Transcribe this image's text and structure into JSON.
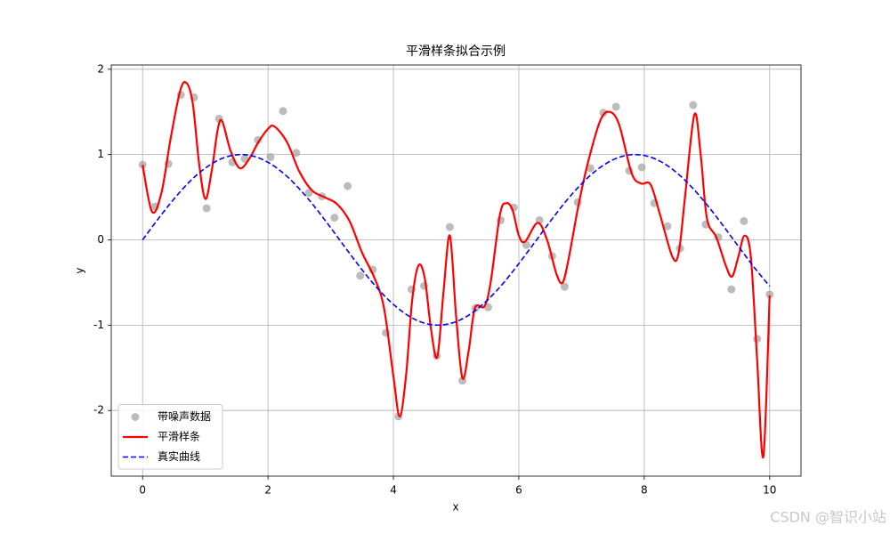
{
  "chart_data": {
    "type": "scatter",
    "title": "平滑样条拟合示例",
    "x_label": "x",
    "y_label": "y",
    "xlim": [
      -0.5,
      10.5
    ],
    "ylim": [
      -2.77,
      2.05
    ],
    "xticks": [
      0,
      2,
      4,
      6,
      8,
      10
    ],
    "yticks": [
      -2,
      -1,
      0,
      1,
      2
    ],
    "grid": true,
    "legend": "lower left",
    "watermark": "CSDN @智识小站",
    "series": [
      {
        "name": "带噪声数据",
        "kind": "points",
        "color": "#a0a0a0",
        "x": [
          0,
          0.2,
          0.41,
          0.61,
          0.82,
          1.02,
          1.22,
          1.43,
          1.63,
          1.84,
          2.04,
          2.24,
          2.45,
          2.65,
          2.86,
          3.06,
          3.27,
          3.47,
          3.67,
          3.88,
          4.08,
          4.29,
          4.49,
          4.69,
          4.9,
          5.1,
          5.31,
          5.51,
          5.71,
          5.92,
          6.12,
          6.33,
          6.53,
          6.73,
          6.94,
          7.14,
          7.35,
          7.55,
          7.76,
          7.96,
          8.16,
          8.37,
          8.57,
          8.78,
          8.98,
          9.18,
          9.39,
          9.59,
          9.8,
          10
        ],
        "values": [
          0.88,
          0.39,
          0.89,
          1.7,
          1.67,
          0.37,
          1.42,
          0.91,
          0.95,
          1.17,
          0.97,
          1.51,
          1.02,
          0.55,
          0.51,
          0.26,
          0.63,
          -0.42,
          -0.35,
          -1.09,
          -2.07,
          -0.58,
          -0.54,
          -1.36,
          0.15,
          -1.65,
          -0.8,
          -0.79,
          0.23,
          0.38,
          -0.06,
          0.23,
          -0.19,
          -0.55,
          0.44,
          0.84,
          1.49,
          1.56,
          0.81,
          0.85,
          0.43,
          0.16,
          -0.1,
          1.58,
          0.18,
          0.03,
          -0.58,
          0.22,
          -1.16,
          -0.64
        ]
      },
      {
        "name": "平滑样条",
        "kind": "smooth",
        "color": "#ff0000",
        "x": [
          0,
          0.15,
          0.3,
          0.45,
          0.6,
          0.7,
          0.8,
          0.9,
          1.0,
          1.1,
          1.2,
          1.27,
          1.4,
          1.55,
          1.7,
          1.85,
          2.0,
          2.1,
          2.3,
          2.5,
          2.7,
          2.9,
          3.1,
          3.3,
          3.5,
          3.7,
          3.85,
          4.0,
          4.1,
          4.2,
          4.3,
          4.4,
          4.5,
          4.6,
          4.7,
          4.8,
          4.9,
          5.0,
          5.1,
          5.2,
          5.3,
          5.45,
          5.55,
          5.7,
          5.8,
          5.9,
          6.0,
          6.1,
          6.3,
          6.45,
          6.6,
          6.7,
          6.8,
          6.95,
          7.1,
          7.3,
          7.45,
          7.6,
          7.8,
          7.95,
          8.1,
          8.25,
          8.45,
          8.55,
          8.65,
          8.8,
          8.9,
          9.0,
          9.15,
          9.3,
          9.4,
          9.5,
          9.6,
          9.7,
          9.8,
          9.9,
          10.0
        ],
        "values": [
          0.88,
          0.33,
          0.55,
          1.2,
          1.75,
          1.84,
          1.6,
          0.9,
          0.48,
          0.8,
          1.3,
          1.39,
          1.05,
          0.84,
          0.95,
          1.15,
          1.3,
          1.33,
          1.15,
          0.8,
          0.58,
          0.5,
          0.42,
          0.22,
          -0.15,
          -0.45,
          -0.8,
          -1.6,
          -2.07,
          -1.6,
          -0.7,
          -0.3,
          -0.45,
          -1.05,
          -1.37,
          -0.6,
          0.05,
          -0.9,
          -1.62,
          -1.3,
          -0.8,
          -0.78,
          -0.5,
          0.3,
          0.43,
          0.35,
          0.05,
          -0.02,
          0.2,
          0.0,
          -0.4,
          -0.5,
          -0.2,
          0.4,
          0.9,
          1.4,
          1.5,
          1.35,
          0.78,
          0.66,
          0.65,
          0.3,
          -0.2,
          -0.15,
          0.5,
          1.47,
          1.0,
          0.25,
          0.03,
          -0.3,
          -0.43,
          -0.2,
          0.05,
          -0.2,
          -1.4,
          -2.54,
          -0.65
        ]
      },
      {
        "name": "真实曲线",
        "kind": "dashed",
        "color": "#0000ff",
        "x": [
          0,
          0.25,
          0.5,
          0.75,
          1,
          1.25,
          1.5,
          1.75,
          2,
          2.25,
          2.5,
          2.75,
          3,
          3.25,
          3.5,
          3.75,
          4,
          4.25,
          4.5,
          4.75,
          5,
          5.25,
          5.5,
          5.75,
          6,
          6.25,
          6.5,
          6.75,
          7,
          7.25,
          7.5,
          7.75,
          8,
          8.25,
          8.5,
          8.75,
          9,
          9.25,
          9.5,
          9.75,
          10
        ],
        "values": [
          0,
          0.247,
          0.479,
          0.682,
          0.841,
          0.949,
          0.997,
          0.984,
          0.909,
          0.778,
          0.598,
          0.382,
          0.141,
          -0.108,
          -0.351,
          -0.572,
          -0.757,
          -0.895,
          -0.978,
          -0.999,
          -0.959,
          -0.859,
          -0.706,
          -0.51,
          -0.279,
          -0.033,
          0.215,
          0.451,
          0.657,
          0.823,
          0.938,
          0.995,
          0.989,
          0.923,
          0.798,
          0.624,
          0.412,
          0.174,
          -0.075,
          -0.319,
          -0.544
        ]
      }
    ]
  }
}
